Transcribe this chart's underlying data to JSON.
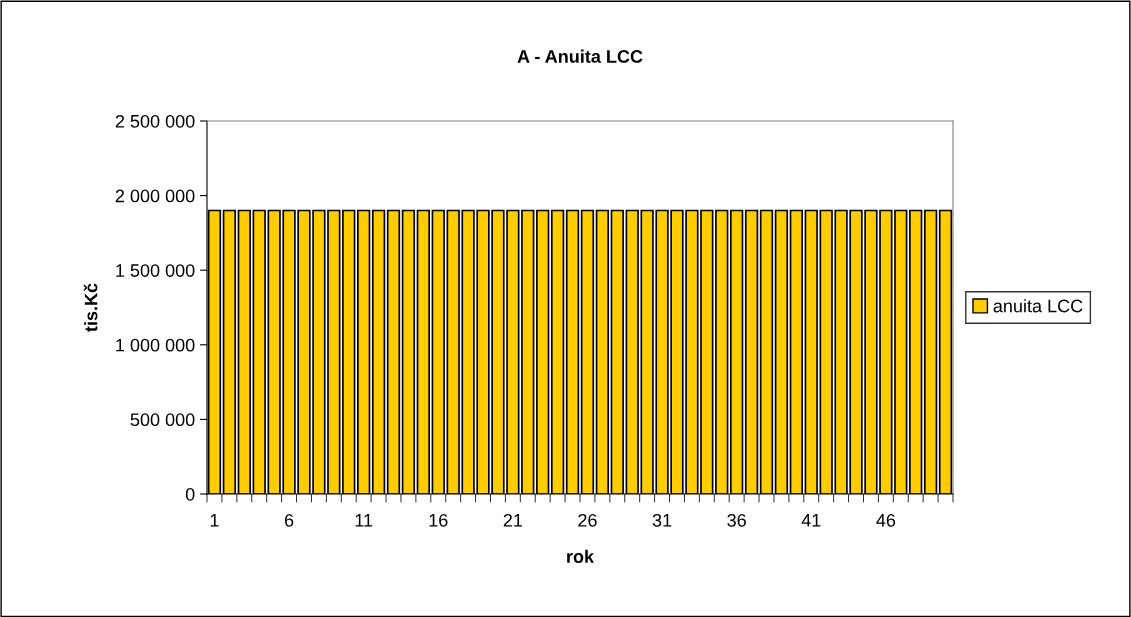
{
  "chart_data": {
    "type": "bar",
    "title": "A - Anuita LCC",
    "xlabel": "rok",
    "ylabel": "tis.Kč",
    "categories": [
      "1",
      null,
      null,
      null,
      null,
      "6",
      null,
      null,
      null,
      null,
      "11",
      null,
      null,
      null,
      null,
      "16",
      null,
      null,
      null,
      null,
      "21",
      null,
      null,
      null,
      null,
      "26",
      null,
      null,
      null,
      null,
      "31",
      null,
      null,
      null,
      null,
      "36",
      null,
      null,
      null,
      null,
      "41",
      null,
      null,
      null,
      null,
      "46",
      null,
      null,
      null,
      null
    ],
    "series": [
      {
        "name": "anuita LCC",
        "color": "#ffcc00",
        "values": [
          1900000,
          1900000,
          1900000,
          1900000,
          1900000,
          1900000,
          1900000,
          1900000,
          1900000,
          1900000,
          1900000,
          1900000,
          1900000,
          1900000,
          1900000,
          1900000,
          1900000,
          1900000,
          1900000,
          1900000,
          1900000,
          1900000,
          1900000,
          1900000,
          1900000,
          1900000,
          1900000,
          1900000,
          1900000,
          1900000,
          1900000,
          1900000,
          1900000,
          1900000,
          1900000,
          1900000,
          1900000,
          1900000,
          1900000,
          1900000,
          1900000,
          1900000,
          1900000,
          1900000,
          1900000,
          1900000,
          1900000,
          1900000,
          1900000,
          1900000
        ]
      }
    ],
    "ylim": [
      0,
      2500000
    ],
    "yticks": [
      {
        "value": 0,
        "label": "0"
      },
      {
        "value": 500000,
        "label": "500 000"
      },
      {
        "value": 1000000,
        "label": "1 000 000"
      },
      {
        "value": 1500000,
        "label": "1 500 000"
      },
      {
        "value": 2000000,
        "label": "2 000 000"
      },
      {
        "value": 2500000,
        "label": "2 500 000"
      }
    ],
    "grid": false,
    "legend": "right"
  }
}
